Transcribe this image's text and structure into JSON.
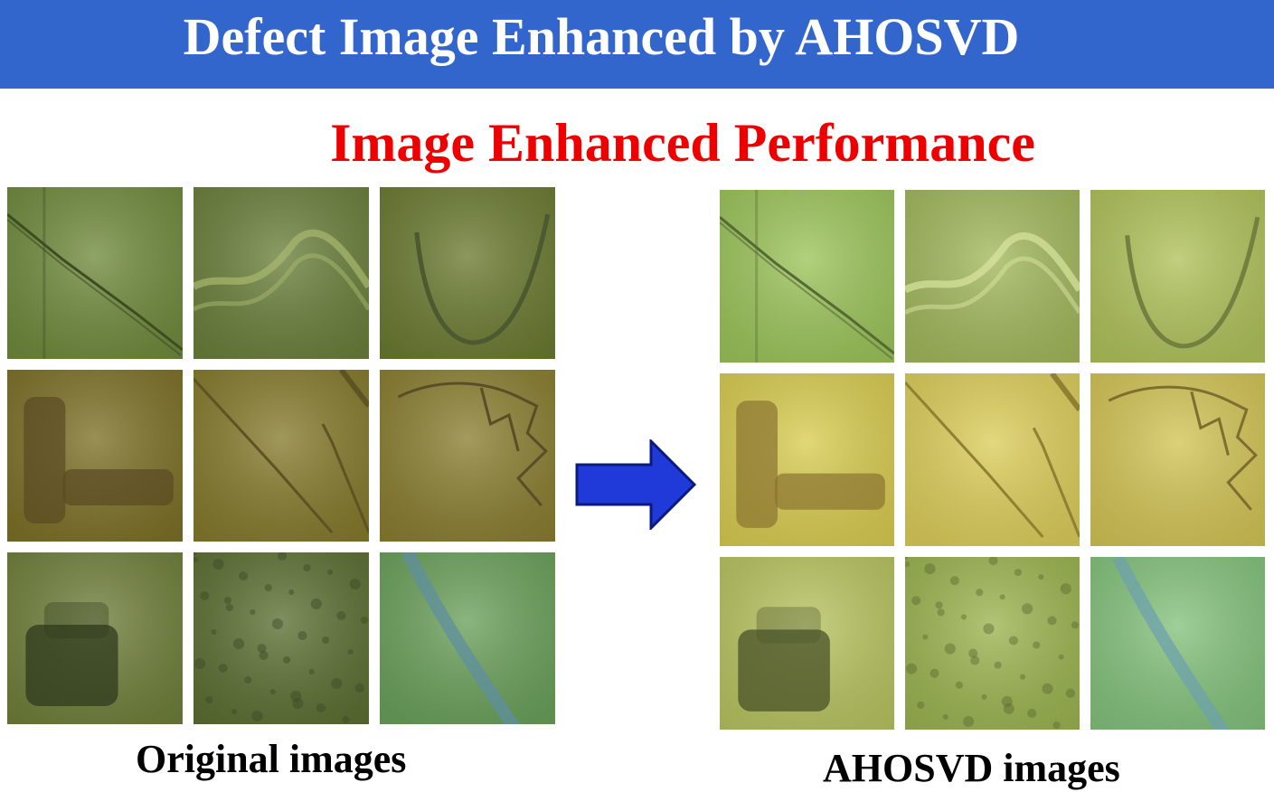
{
  "header": {
    "title": "Defect Image Enhanced by AHOSVD"
  },
  "subtitle": "Image Enhanced Performance",
  "original": {
    "caption": "Original images",
    "tiles": [
      {
        "bg": "#6f8a3c",
        "mark": "#3d4d22",
        "kind": "diag-line"
      },
      {
        "bg": "#6a7f3a",
        "mark": "#a9b86e",
        "kind": "wave"
      },
      {
        "bg": "#6a7a30",
        "mark": "#4d5a30",
        "kind": "u-curve"
      },
      {
        "bg": "#7c7026",
        "mark": "#5a4a22",
        "kind": "blob-l"
      },
      {
        "bg": "#857a2c",
        "mark": "#5d5424",
        "kind": "diag-line2"
      },
      {
        "bg": "#8a7e30",
        "mark": "#5a4e28",
        "kind": "scribble"
      },
      {
        "bg": "#6f7f3a",
        "mark": "#2f3a1e",
        "kind": "blob-box"
      },
      {
        "bg": "#5c6f32",
        "mark": "#3c4a26",
        "kind": "noise"
      },
      {
        "bg": "#6aa05a",
        "mark": "#5f8fa0",
        "kind": "curve-band"
      }
    ]
  },
  "enhanced": {
    "caption": "AHOSVD images",
    "tiles": [
      {
        "bg": "#9cc45a",
        "mark": "#566a34",
        "kind": "diag-line"
      },
      {
        "bg": "#a2b85c",
        "mark": "#d8e5a0",
        "kind": "wave"
      },
      {
        "bg": "#b0c25a",
        "mark": "#74803f",
        "kind": "u-curve"
      },
      {
        "bg": "#d8cc50",
        "mark": "#8a7430",
        "kind": "blob-l"
      },
      {
        "bg": "#dccd5a",
        "mark": "#8f8034",
        "kind": "diag-line2"
      },
      {
        "bg": "#d2c455",
        "mark": "#7e6e30",
        "kind": "scribble"
      },
      {
        "bg": "#b8c460",
        "mark": "#4a5228",
        "kind": "blob-box"
      },
      {
        "bg": "#9cb450",
        "mark": "#5a6a30",
        "kind": "noise"
      },
      {
        "bg": "#84c27c",
        "mark": "#6ea2ac",
        "kind": "curve-band"
      }
    ]
  },
  "colors": {
    "banner": "#3366cc",
    "banner_text": "#ffffff",
    "subtitle_text": "#ee0000",
    "arrow_fill": "#1f3ad8",
    "arrow_stroke": "#0a1a80"
  },
  "arrow": {
    "icon": "right-arrow-icon"
  }
}
